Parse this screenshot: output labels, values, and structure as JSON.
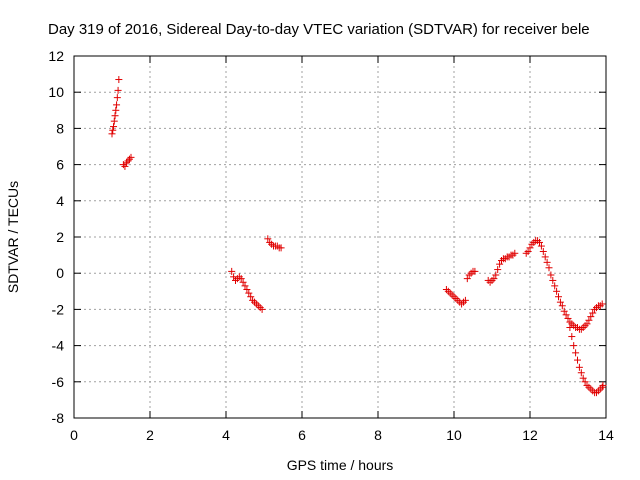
{
  "chart_data": {
    "type": "scatter",
    "title": "Day 319 of 2016, Sidereal Day-to-day VTEC variation (SDTVAR) for receiver bele",
    "xlabel": "GPS time / hours",
    "ylabel": "SDTVAR / TECUs",
    "xlim": [
      0,
      14
    ],
    "ylim": [
      -8,
      12
    ],
    "xticks": [
      "0",
      "2",
      "4",
      "6",
      "8",
      "10",
      "12",
      "14"
    ],
    "yticks": [
      "-8",
      "-6",
      "-4",
      "-2",
      "0",
      "2",
      "4",
      "6",
      "8",
      "10",
      "12"
    ],
    "grid": true,
    "marker": "+",
    "marker_color": "#e00000",
    "series": [
      {
        "name": "bele",
        "points": [
          [
            1.0,
            7.7
          ],
          [
            1.02,
            7.9
          ],
          [
            1.04,
            8.1
          ],
          [
            1.06,
            8.4
          ],
          [
            1.08,
            8.7
          ],
          [
            1.1,
            9.0
          ],
          [
            1.12,
            9.3
          ],
          [
            1.14,
            9.7
          ],
          [
            1.16,
            10.1
          ],
          [
            1.18,
            10.7
          ],
          [
            1.3,
            6.0
          ],
          [
            1.34,
            5.9
          ],
          [
            1.38,
            6.1
          ],
          [
            1.42,
            6.2
          ],
          [
            1.46,
            6.3
          ],
          [
            1.5,
            6.4
          ],
          [
            4.15,
            0.1
          ],
          [
            4.2,
            -0.2
          ],
          [
            4.25,
            -0.4
          ],
          [
            4.3,
            -0.3
          ],
          [
            4.35,
            -0.2
          ],
          [
            4.4,
            -0.3
          ],
          [
            4.45,
            -0.5
          ],
          [
            4.5,
            -0.7
          ],
          [
            4.55,
            -0.9
          ],
          [
            4.6,
            -1.1
          ],
          [
            4.65,
            -1.3
          ],
          [
            4.7,
            -1.5
          ],
          [
            4.75,
            -1.6
          ],
          [
            4.8,
            -1.7
          ],
          [
            4.85,
            -1.8
          ],
          [
            4.9,
            -1.9
          ],
          [
            4.95,
            -2.0
          ],
          [
            5.1,
            1.9
          ],
          [
            5.15,
            1.7
          ],
          [
            5.2,
            1.6
          ],
          [
            5.25,
            1.5
          ],
          [
            5.3,
            1.5
          ],
          [
            5.35,
            1.5
          ],
          [
            5.4,
            1.4
          ],
          [
            5.45,
            1.4
          ],
          [
            9.8,
            -0.9
          ],
          [
            9.85,
            -1.0
          ],
          [
            9.9,
            -1.1
          ],
          [
            9.95,
            -1.2
          ],
          [
            10.0,
            -1.3
          ],
          [
            10.05,
            -1.4
          ],
          [
            10.1,
            -1.5
          ],
          [
            10.15,
            -1.6
          ],
          [
            10.2,
            -1.7
          ],
          [
            10.25,
            -1.6
          ],
          [
            10.3,
            -1.5
          ],
          [
            10.35,
            -0.3
          ],
          [
            10.4,
            -0.1
          ],
          [
            10.45,
            0.0
          ],
          [
            10.5,
            0.1
          ],
          [
            10.55,
            0.1
          ],
          [
            10.9,
            -0.4
          ],
          [
            10.95,
            -0.5
          ],
          [
            11.0,
            -0.4
          ],
          [
            11.05,
            -0.3
          ],
          [
            11.1,
            -0.1
          ],
          [
            11.15,
            0.2
          ],
          [
            11.2,
            0.5
          ],
          [
            11.25,
            0.7
          ],
          [
            11.3,
            0.8
          ],
          [
            11.35,
            0.8
          ],
          [
            11.4,
            0.9
          ],
          [
            11.45,
            0.9
          ],
          [
            11.5,
            1.0
          ],
          [
            11.55,
            1.0
          ],
          [
            11.6,
            1.1
          ],
          [
            11.9,
            1.1
          ],
          [
            11.95,
            1.2
          ],
          [
            12.0,
            1.4
          ],
          [
            12.05,
            1.6
          ],
          [
            12.1,
            1.7
          ],
          [
            12.15,
            1.8
          ],
          [
            12.2,
            1.8
          ],
          [
            12.25,
            1.7
          ],
          [
            12.3,
            1.5
          ],
          [
            12.35,
            1.2
          ],
          [
            12.4,
            0.9
          ],
          [
            12.45,
            0.6
          ],
          [
            12.5,
            0.3
          ],
          [
            12.55,
            -0.1
          ],
          [
            12.6,
            -0.4
          ],
          [
            12.65,
            -0.7
          ],
          [
            12.7,
            -1.0
          ],
          [
            12.75,
            -1.3
          ],
          [
            12.8,
            -1.6
          ],
          [
            12.85,
            -1.8
          ],
          [
            12.9,
            -2.1
          ],
          [
            12.95,
            -2.3
          ],
          [
            13.0,
            -2.5
          ],
          [
            13.05,
            -2.7
          ],
          [
            13.1,
            -2.8
          ],
          [
            13.15,
            -2.9
          ],
          [
            13.2,
            -3.0
          ],
          [
            13.25,
            -3.0
          ],
          [
            13.3,
            -3.1
          ],
          [
            13.35,
            -3.1
          ],
          [
            13.4,
            -3.0
          ],
          [
            13.45,
            -2.9
          ],
          [
            13.5,
            -2.8
          ],
          [
            13.55,
            -2.6
          ],
          [
            13.6,
            -2.4
          ],
          [
            13.65,
            -2.2
          ],
          [
            13.7,
            -2.0
          ],
          [
            13.75,
            -1.9
          ],
          [
            13.8,
            -1.8
          ],
          [
            13.85,
            -1.8
          ],
          [
            13.9,
            -1.7
          ],
          [
            13.05,
            -3.0
          ],
          [
            13.1,
            -3.5
          ],
          [
            13.15,
            -4.0
          ],
          [
            13.2,
            -4.4
          ],
          [
            13.25,
            -4.8
          ],
          [
            13.3,
            -5.2
          ],
          [
            13.35,
            -5.5
          ],
          [
            13.4,
            -5.8
          ],
          [
            13.45,
            -6.0
          ],
          [
            13.5,
            -6.2
          ],
          [
            13.55,
            -6.3
          ],
          [
            13.6,
            -6.4
          ],
          [
            13.65,
            -6.5
          ],
          [
            13.7,
            -6.6
          ],
          [
            13.75,
            -6.6
          ],
          [
            13.8,
            -6.5
          ],
          [
            13.85,
            -6.4
          ],
          [
            13.9,
            -6.3
          ],
          [
            13.92,
            -6.2
          ]
        ]
      }
    ]
  }
}
